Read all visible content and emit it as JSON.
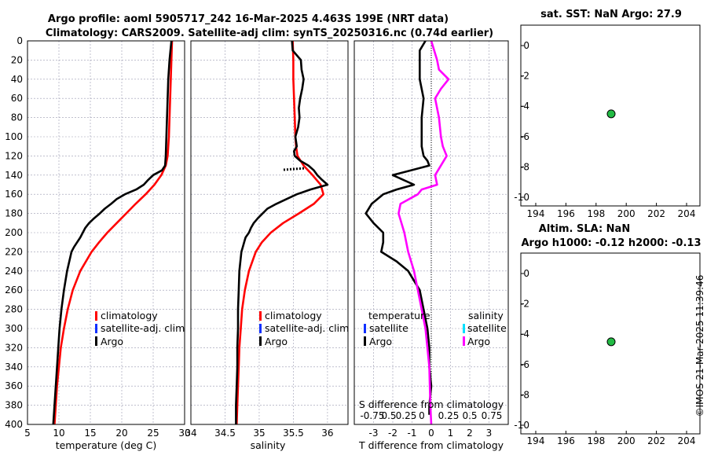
{
  "figure": {
    "title_line1": "Argo profile: aoml 5905717_242 16-Mar-2025 4.463S 199E (NRT data)",
    "title_line2": "Climatology: CARS2009. Satellite-adj clim: synTS_20250316.nc (0.74d earlier)",
    "side_stamp": "©IMOS 21-Mar-2025 11:39:46"
  },
  "chart_data": [
    {
      "id": "temperature",
      "type": "line",
      "xlabel": "temperature (deg C)",
      "xlim": [
        5,
        30
      ],
      "xticks": [
        "5",
        "10",
        "15",
        "20",
        "25",
        "30"
      ],
      "ylim": [
        0,
        400
      ],
      "yticks": [
        "0",
        "20",
        "40",
        "60",
        "80",
        "100",
        "120",
        "140",
        "160",
        "180",
        "200",
        "220",
        "240",
        "260",
        "280",
        "300",
        "320",
        "340",
        "360",
        "380",
        "400"
      ],
      "legend": [
        "climatology",
        "satellite-adj. clim",
        "Argo"
      ],
      "series": [
        {
          "name": "climatology",
          "color": "#ff0000",
          "depth": [
            0,
            20,
            40,
            60,
            80,
            100,
            120,
            130,
            140,
            150,
            160,
            170,
            180,
            190,
            200,
            210,
            220,
            240,
            260,
            280,
            300,
            320,
            340,
            360,
            380,
            400
          ],
          "values": [
            28.0,
            27.9,
            27.8,
            27.7,
            27.6,
            27.5,
            27.3,
            27.0,
            26.3,
            25.2,
            23.8,
            22.2,
            20.7,
            19.2,
            17.7,
            16.4,
            15.2,
            13.4,
            12.2,
            11.4,
            10.8,
            10.3,
            10.0,
            9.7,
            9.5,
            9.3
          ]
        },
        {
          "name": "Argo",
          "color": "#000000",
          "depth": [
            0,
            20,
            40,
            60,
            80,
            100,
            120,
            130,
            135,
            140,
            145,
            150,
            155,
            160,
            165,
            170,
            175,
            180,
            185,
            190,
            195,
            200,
            205,
            210,
            215,
            220,
            240,
            260,
            280,
            300,
            320,
            340,
            360,
            380,
            400
          ],
          "values": [
            27.9,
            27.6,
            27.4,
            27.3,
            27.2,
            27.1,
            27.0,
            26.9,
            26.4,
            25.0,
            24.2,
            23.5,
            22.3,
            20.5,
            19.2,
            18.3,
            17.3,
            16.5,
            15.6,
            14.8,
            14.2,
            13.8,
            13.4,
            12.9,
            12.4,
            12.0,
            11.3,
            10.8,
            10.4,
            10.1,
            9.9,
            9.7,
            9.5,
            9.3,
            9.1
          ]
        }
      ]
    },
    {
      "id": "salinity",
      "type": "line",
      "xlabel": "salinity",
      "xlim": [
        34,
        36.3
      ],
      "xticks": [
        "34",
        "34.5",
        "35",
        "35.5",
        "36"
      ],
      "ylim": [
        0,
        400
      ],
      "legend": [
        "climatology",
        "satellite-adj. clim",
        "Argo"
      ],
      "series": [
        {
          "name": "climatology",
          "color": "#ff0000",
          "depth": [
            0,
            20,
            40,
            60,
            80,
            100,
            110,
            120,
            130,
            140,
            150,
            160,
            170,
            180,
            190,
            200,
            210,
            220,
            240,
            260,
            280,
            300,
            320,
            340,
            360,
            380,
            400
          ],
          "values": [
            35.49,
            35.5,
            35.5,
            35.51,
            35.52,
            35.53,
            35.54,
            35.56,
            35.65,
            35.78,
            35.9,
            35.94,
            35.8,
            35.58,
            35.35,
            35.17,
            35.04,
            34.95,
            34.85,
            34.79,
            34.75,
            34.73,
            34.71,
            34.7,
            34.69,
            34.68,
            34.67
          ]
        },
        {
          "name": "Argo",
          "color": "#000000",
          "depth": [
            0,
            10,
            20,
            30,
            40,
            50,
            60,
            70,
            80,
            90,
            100,
            110,
            115,
            120,
            125,
            130,
            135,
            140,
            145,
            150,
            155,
            160,
            165,
            170,
            175,
            180,
            185,
            190,
            195,
            200,
            205,
            210,
            215,
            220,
            240,
            260,
            280,
            300,
            320,
            340,
            360,
            380,
            400
          ],
          "values": [
            35.48,
            35.49,
            35.61,
            35.62,
            35.65,
            35.63,
            35.6,
            35.58,
            35.59,
            35.57,
            35.53,
            35.55,
            35.51,
            35.52,
            35.6,
            35.72,
            35.8,
            35.85,
            35.92,
            36.0,
            35.75,
            35.55,
            35.4,
            35.25,
            35.12,
            35.05,
            34.98,
            34.92,
            34.88,
            34.85,
            34.8,
            34.78,
            34.76,
            34.74,
            34.71,
            34.7,
            34.69,
            34.69,
            34.68,
            34.68,
            34.67,
            34.66,
            34.66
          ]
        }
      ]
    },
    {
      "id": "difference",
      "type": "line",
      "xlabel": "T difference from climatology",
      "top_axis_label": "S difference from climatology",
      "top_ticks": [
        "-0.75",
        "0.5",
        "0.25",
        "0",
        "0.25",
        "0.5",
        "0.75"
      ],
      "xlim": [
        -4,
        4
      ],
      "xticks": [
        "-3",
        "-2",
        "-1",
        "0",
        "1",
        "2",
        "3"
      ],
      "ylim": [
        0,
        400
      ],
      "legend_left_title": "temperature",
      "legend_right_title": "salinity",
      "legend_left": [
        "satellite",
        "Argo"
      ],
      "legend_right": [
        "satellite",
        "Argo"
      ],
      "series": [
        {
          "name": "T Argo",
          "color": "#000000",
          "depth": [
            0,
            10,
            20,
            40,
            60,
            80,
            100,
            110,
            120,
            125,
            130,
            140,
            150,
            155,
            160,
            170,
            180,
            190,
            200,
            210,
            220,
            230,
            240,
            260,
            280,
            300,
            320,
            340,
            360,
            380,
            390
          ],
          "values": [
            -0.3,
            -0.6,
            -0.6,
            -0.6,
            -0.4,
            -0.5,
            -0.5,
            -0.5,
            -0.4,
            -0.2,
            -0.1,
            -2.0,
            -0.9,
            -1.8,
            -2.5,
            -3.1,
            -3.4,
            -3.0,
            -2.5,
            -2.5,
            -2.6,
            -1.8,
            -1.2,
            -0.6,
            -0.4,
            -0.2,
            -0.1,
            -0.1,
            0.0,
            -0.1,
            -0.1
          ]
        },
        {
          "name": "S Argo (scaled)",
          "color": "#ff00ff",
          "depth": [
            0,
            20,
            30,
            40,
            50,
            60,
            80,
            100,
            110,
            120,
            130,
            140,
            150,
            155,
            160,
            170,
            180,
            200,
            220,
            240,
            260,
            280,
            300,
            340,
            380,
            400
          ],
          "values": [
            0.0,
            0.3,
            0.4,
            0.9,
            0.5,
            0.2,
            0.4,
            0.5,
            0.6,
            0.8,
            0.5,
            0.2,
            0.3,
            -0.5,
            -0.7,
            -1.6,
            -1.7,
            -1.4,
            -1.2,
            -0.9,
            -0.7,
            -0.5,
            -0.3,
            -0.1,
            -0.05,
            0.0
          ]
        }
      ]
    },
    {
      "id": "sst",
      "type": "scatter",
      "title": "sat. SST: NaN Argo: 27.9",
      "xlim": [
        194,
        204
      ],
      "xticks": [
        "194",
        "196",
        "198",
        "200",
        "202",
        "204"
      ],
      "ylim": [
        -10,
        0
      ],
      "yticks": [
        "0",
        "-2",
        "-4",
        "-6",
        "-8",
        "-10"
      ],
      "points": [
        {
          "x": 199.0,
          "y": -4.5,
          "color": "#22bb44"
        }
      ]
    },
    {
      "id": "sla",
      "type": "scatter",
      "title_line1": "Altim. SLA: NaN",
      "title_line2": "Argo h1000: -0.12 h2000: -0.13",
      "xlim": [
        194,
        204
      ],
      "xticks": [
        "194",
        "196",
        "198",
        "200",
        "202",
        "204"
      ],
      "ylim": [
        -10,
        0
      ],
      "yticks": [
        "0",
        "-2",
        "-4",
        "-6",
        "-8",
        "-10"
      ],
      "points": [
        {
          "x": 199.0,
          "y": -4.5,
          "color": "#22bb44"
        }
      ]
    }
  ]
}
